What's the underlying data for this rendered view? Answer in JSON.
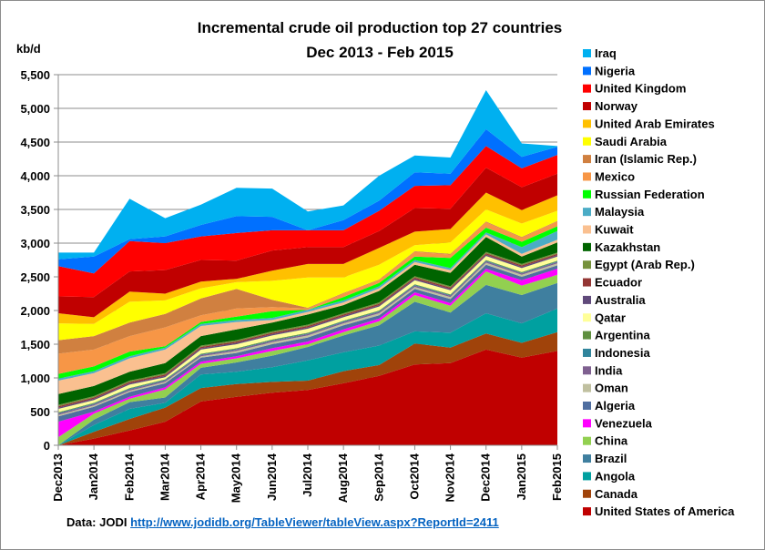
{
  "chart_data": {
    "type": "area",
    "stacked": true,
    "title": "Incremental crude oil production top 27 countries",
    "subtitle": "Dec 2013 - Feb 2015",
    "ylabel": "kb/d",
    "xlabel": "",
    "ylim": [
      0,
      5500
    ],
    "yticks": [
      "0",
      "500",
      "1,000",
      "1,500",
      "2,000",
      "2,500",
      "3,000",
      "3,500",
      "4,000",
      "4,500",
      "5,000",
      "5,500"
    ],
    "grid": true,
    "legend_position": "right",
    "categories": [
      "Dec2013",
      "Jan2014",
      "Feb2014",
      "Mar2014",
      "Apr2014",
      "May2014",
      "Jun2014",
      "Jul2014",
      "Aug2014",
      "Sep2014",
      "Oct2014",
      "Nov2014",
      "Dec2014",
      "Jan2015",
      "Feb2015"
    ],
    "series": [
      {
        "name": "United States of America",
        "color": "#c00000",
        "values": [
          0,
          100,
          220,
          350,
          650,
          720,
          780,
          820,
          920,
          1030,
          1200,
          1220,
          1420,
          1300,
          1400
        ]
      },
      {
        "name": "Canada",
        "color": "#a0430a",
        "values": [
          0,
          100,
          170,
          210,
          200,
          190,
          160,
          140,
          180,
          160,
          310,
          230,
          240,
          220,
          280
        ]
      },
      {
        "name": "Angola",
        "color": "#00a0a0",
        "values": [
          0,
          100,
          150,
          70,
          200,
          180,
          220,
          300,
          280,
          290,
          180,
          220,
          300,
          290,
          350
        ]
      },
      {
        "name": "Brazil",
        "color": "#3f7f9f",
        "values": [
          0,
          80,
          100,
          80,
          100,
          140,
          170,
          200,
          250,
          300,
          440,
          300,
          420,
          420,
          380
        ]
      },
      {
        "name": "China",
        "color": "#92d050",
        "values": [
          120,
          90,
          50,
          120,
          60,
          60,
          70,
          40,
          50,
          60,
          100,
          100,
          200,
          140,
          120
        ]
      },
      {
        "name": "Venezuela",
        "color": "#ff00ff",
        "values": [
          230,
          30,
          30,
          30,
          30,
          30,
          40,
          40,
          40,
          40,
          40,
          40,
          40,
          80,
          90
        ]
      },
      {
        "name": "Algeria",
        "color": "#4f6ea0",
        "values": [
          80,
          70,
          70,
          60,
          60,
          50,
          60,
          60,
          60,
          50,
          50,
          60,
          60,
          50,
          50
        ]
      },
      {
        "name": "Oman",
        "color": "#c0c0a0",
        "values": [
          20,
          20,
          20,
          20,
          20,
          30,
          30,
          30,
          30,
          30,
          30,
          30,
          30,
          30,
          30
        ]
      },
      {
        "name": "India",
        "color": "#7f6090",
        "values": [
          20,
          20,
          20,
          20,
          20,
          20,
          20,
          20,
          20,
          20,
          20,
          20,
          20,
          20,
          20
        ]
      },
      {
        "name": "Indonesia",
        "color": "#31859c",
        "values": [
          10,
          10,
          10,
          10,
          10,
          10,
          10,
          10,
          10,
          10,
          10,
          10,
          10,
          10,
          10
        ]
      },
      {
        "name": "Argentina",
        "color": "#5f8f3f",
        "values": [
          10,
          10,
          10,
          10,
          10,
          10,
          10,
          10,
          10,
          10,
          10,
          10,
          10,
          10,
          10
        ]
      },
      {
        "name": "Qatar",
        "color": "#ffff99",
        "values": [
          50,
          40,
          50,
          30,
          60,
          60,
          60,
          60,
          50,
          60,
          60,
          60,
          60,
          60,
          60
        ]
      },
      {
        "name": "Australia",
        "color": "#604a7b",
        "values": [
          20,
          20,
          20,
          20,
          20,
          20,
          20,
          20,
          20,
          20,
          20,
          20,
          20,
          20,
          20
        ]
      },
      {
        "name": "Ecuador",
        "color": "#943634",
        "values": [
          20,
          20,
          20,
          20,
          20,
          20,
          20,
          20,
          20,
          20,
          20,
          20,
          20,
          20,
          20
        ]
      },
      {
        "name": "Egypt (Arab Rep.)",
        "color": "#76923c",
        "values": [
          20,
          20,
          20,
          20,
          20,
          20,
          20,
          20,
          20,
          20,
          20,
          20,
          20,
          20,
          20
        ]
      },
      {
        "name": "Kazakhstan",
        "color": "#006400",
        "values": [
          160,
          150,
          130,
          150,
          140,
          160,
          130,
          150,
          120,
          170,
          170,
          200,
          220,
          110,
          150
        ]
      },
      {
        "name": "Kuwait",
        "color": "#fac090",
        "values": [
          200,
          190,
          200,
          200,
          150,
          110,
          40,
          40,
          40,
          40,
          40,
          40,
          40,
          40,
          40
        ]
      },
      {
        "name": "Malaysia",
        "color": "#4bacc6",
        "values": [
          30,
          30,
          30,
          30,
          30,
          30,
          30,
          30,
          30,
          30,
          30,
          30,
          30,
          100,
          130
        ]
      },
      {
        "name": "Russian Federation",
        "color": "#00ff00",
        "values": [
          70,
          70,
          70,
          20,
          30,
          50,
          100,
          0,
          50,
          50,
          50,
          150,
          70,
          80,
          70
        ]
      },
      {
        "name": "Mexico",
        "color": "#f79646",
        "values": [
          300,
          250,
          230,
          280,
          100,
          120,
          60,
          20,
          50,
          40,
          70,
          50,
          80,
          60,
          70
        ]
      },
      {
        "name": "Iran (Islamic Rep.)",
        "color": "#d08040",
        "values": [
          200,
          200,
          200,
          200,
          250,
          290,
          110,
          10,
          10,
          10,
          10,
          10,
          10,
          10,
          10
        ]
      },
      {
        "name": "Saudi Arabia",
        "color": "#ffff00",
        "values": [
          250,
          180,
          310,
          200,
          150,
          100,
          280,
          450,
          230,
          220,
          90,
          170,
          180,
          200,
          150
        ]
      },
      {
        "name": "United Arab Emirates",
        "color": "#ffc000",
        "values": [
          150,
          100,
          150,
          100,
          100,
          50,
          150,
          200,
          200,
          250,
          200,
          200,
          250,
          200,
          230
        ]
      },
      {
        "name": "Norway",
        "color": "#c00000",
        "values": [
          250,
          300,
          300,
          350,
          320,
          270,
          300,
          250,
          250,
          250,
          350,
          300,
          370,
          340,
          320
        ]
      },
      {
        "name": "United Kingdom",
        "color": "#ff0000",
        "values": [
          450,
          350,
          450,
          400,
          350,
          410,
          300,
          250,
          250,
          300,
          330,
          350,
          320,
          280,
          280
        ]
      },
      {
        "name": "Nigeria",
        "color": "#0070ff",
        "values": [
          100,
          250,
          30,
          100,
          170,
          250,
          200,
          0,
          150,
          150,
          200,
          170,
          250,
          170,
          120
        ]
      },
      {
        "name": "Iraq",
        "color": "#00b0f0",
        "values": [
          100,
          60,
          600,
          270,
          300,
          420,
          420,
          280,
          220,
          370,
          250,
          240,
          580,
          200,
          10
        ]
      }
    ]
  },
  "footer": {
    "source_label": "Data: JODI",
    "source_link": "http://www.jodidb.org/TableViewer/tableView.aspx?ReportId=2411"
  }
}
